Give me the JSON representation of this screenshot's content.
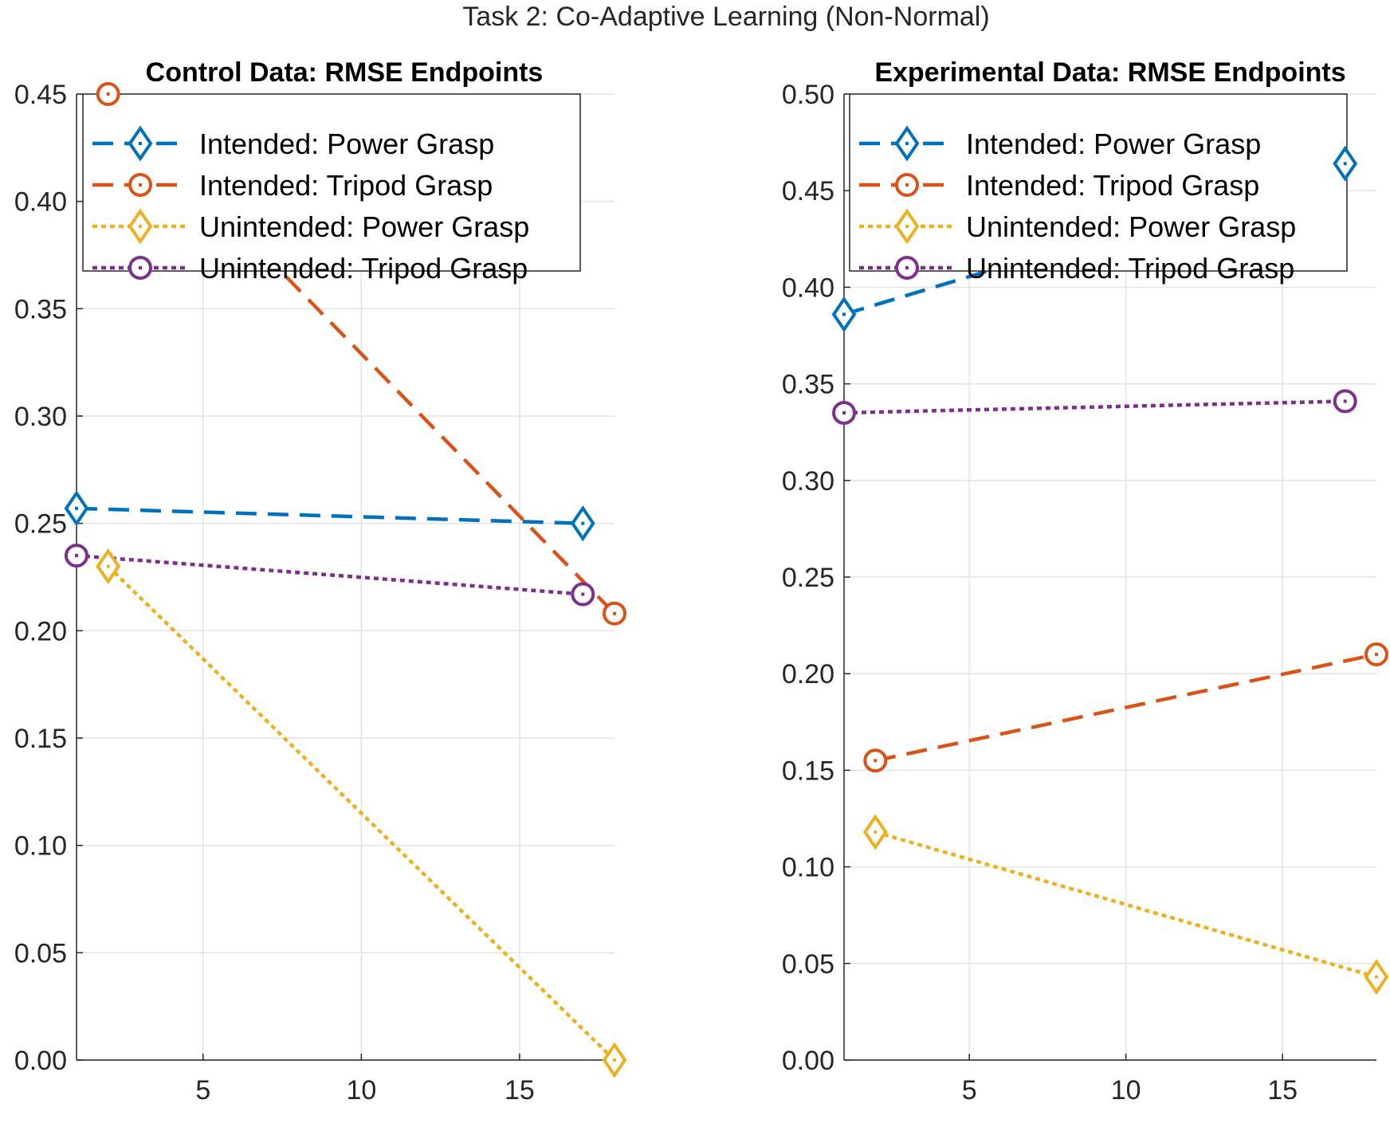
{
  "figure": {
    "suptitle": "Task 2: Co-Adaptive Learning (Non-Normal)"
  },
  "chart_data": [
    {
      "type": "line",
      "title": "Control Data: RMSE Endpoints",
      "xlabel": "",
      "ylabel": "",
      "xlim": [
        1,
        18
      ],
      "ylim": [
        0,
        0.45
      ],
      "xticks": [
        5,
        10,
        15
      ],
      "yticks": [
        0.0,
        0.05,
        0.1,
        0.15,
        0.2,
        0.25,
        0.3,
        0.35,
        0.4,
        0.45
      ],
      "grid": true,
      "legend_position": "top-right",
      "series": [
        {
          "name": "Intended: Power Grasp",
          "x": [
            1,
            17
          ],
          "y": [
            0.257,
            0.25
          ]
        },
        {
          "name": "Intended: Tripod Grasp",
          "x": [
            2,
            18
          ],
          "y": [
            0.45,
            0.208
          ]
        },
        {
          "name": "Unintended: Power Grasp",
          "x": [
            2,
            18
          ],
          "y": [
            0.23,
            0.0
          ]
        },
        {
          "name": "Unintended: Tripod Grasp",
          "x": [
            1,
            17
          ],
          "y": [
            0.235,
            0.217
          ]
        }
      ]
    },
    {
      "type": "line",
      "title": "Experimental Data: RMSE Endpoints",
      "xlabel": "",
      "ylabel": "",
      "xlim": [
        1,
        18
      ],
      "ylim": [
        0,
        0.5
      ],
      "xticks": [
        5,
        10,
        15
      ],
      "yticks": [
        0.0,
        0.05,
        0.1,
        0.15,
        0.2,
        0.25,
        0.3,
        0.35,
        0.4,
        0.45,
        0.5
      ],
      "grid": true,
      "legend_position": "top-right",
      "series": [
        {
          "name": "Intended: Power Grasp",
          "x": [
            1,
            17
          ],
          "y": [
            0.386,
            0.464
          ]
        },
        {
          "name": "Intended: Tripod Grasp",
          "x": [
            2,
            18
          ],
          "y": [
            0.155,
            0.21
          ]
        },
        {
          "name": "Unintended: Power Grasp",
          "x": [
            2,
            18
          ],
          "y": [
            0.118,
            0.043
          ]
        },
        {
          "name": "Unintended: Tripod Grasp",
          "x": [
            1,
            17
          ],
          "y": [
            0.335,
            0.341
          ]
        }
      ]
    }
  ],
  "series_styles": [
    {
      "color": "#0072BD",
      "dash": "dashed",
      "marker": "diamond"
    },
    {
      "color": "#D95319",
      "dash": "dashed",
      "marker": "circle"
    },
    {
      "color": "#EDB120",
      "dash": "dotted",
      "marker": "diamond"
    },
    {
      "color": "#7E2F8E",
      "dash": "dotted",
      "marker": "circle"
    }
  ]
}
